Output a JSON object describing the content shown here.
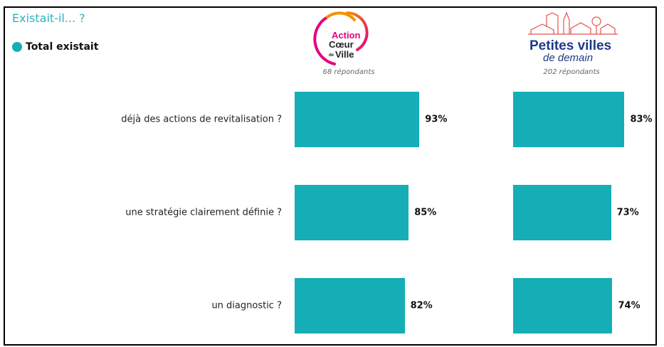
{
  "title": "Existait-il... ?",
  "legend": {
    "label": "Total existait",
    "color": "#15aeb7"
  },
  "chart_data": {
    "type": "bar",
    "orientation": "horizontal",
    "title": "Existait-il... ?",
    "categories": [
      "déjà des actions de revitalisation ?",
      "une stratégie clairement définie ?",
      "un diagnostic ?"
    ],
    "xlim": [
      0,
      100
    ],
    "unit": "%",
    "grid": false,
    "legend_position": "top-left",
    "series_name": "Total existait",
    "panels": [
      {
        "logo": "Action Cœur de Ville",
        "logo_text": [
          "Action",
          "Cœur",
          "de",
          "Ville"
        ],
        "respondents": "68 répondants",
        "values": [
          93,
          85,
          82
        ]
      },
      {
        "logo": "Petites villes de demain",
        "logo_text": [
          "Petites villes",
          "de demain"
        ],
        "respondents": "202 répondants",
        "values": [
          83,
          73,
          74
        ]
      }
    ]
  }
}
